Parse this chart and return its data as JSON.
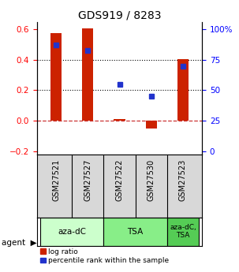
{
  "title": "GDS919 / 8283",
  "samples": [
    "GSM27521",
    "GSM27527",
    "GSM27522",
    "GSM27530",
    "GSM27523"
  ],
  "log_ratios": [
    0.575,
    0.605,
    0.012,
    -0.05,
    0.405
  ],
  "percentile_ranks": [
    87.5,
    82.5,
    55.0,
    45.0,
    70.0
  ],
  "agents": [
    {
      "label": "aza-dC",
      "color": "#ccffcc",
      "span": [
        0,
        2
      ]
    },
    {
      "label": "TSA",
      "color": "#88ee88",
      "span": [
        2,
        4
      ]
    },
    {
      "label": "aza-dC,\nTSA",
      "color": "#55cc55",
      "span": [
        4,
        5
      ]
    }
  ],
  "bar_color": "#cc2200",
  "dot_color": "#2233cc",
  "ylim_left": [
    -0.22,
    0.65
  ],
  "ylim_right": [
    -8.25,
    24.375
  ],
  "yticks_left": [
    -0.2,
    0.0,
    0.2,
    0.4,
    0.6
  ],
  "yticks_right": [
    0,
    6.25,
    12.5,
    18.75,
    25
  ],
  "ytick_labels_right": [
    "0",
    "25",
    "50",
    "75",
    "100%"
  ],
  "hline_0_color": "#cc3333",
  "hline_dotted_vals": [
    0.2,
    0.4
  ],
  "bar_width": 0.35
}
